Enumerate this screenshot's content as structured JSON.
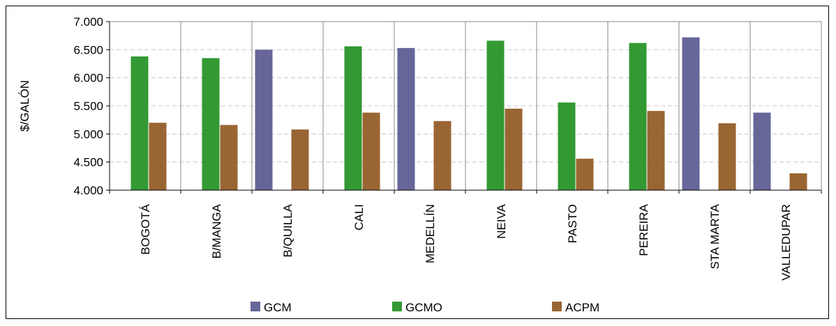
{
  "chart_data": {
    "type": "bar",
    "title": "",
    "xlabel": "",
    "ylabel": "$/GALÓN",
    "ylim": [
      4000,
      7000
    ],
    "yticks": [
      4000,
      4500,
      5000,
      5500,
      6000,
      6500,
      7000
    ],
    "ytick_labels": [
      "4.000",
      "4.500",
      "5.000",
      "5.500",
      "6.000",
      "6.500",
      "7.000"
    ],
    "grid": "horizontal dashed",
    "legend_position": "bottom",
    "categories": [
      "BOGOTÁ",
      "B/MANGA",
      "B/QUILLA",
      "CALI",
      "MEDELLÍN",
      "NEIVA",
      "PASTO",
      "PEREIRA",
      "STA MARTA",
      "VALLEDUPAR"
    ],
    "series": [
      {
        "name": "GCM",
        "color": "#666699",
        "values": [
          null,
          null,
          6500,
          null,
          6530,
          null,
          null,
          null,
          6720,
          5380
        ]
      },
      {
        "name": "GCMO",
        "color": "#339933",
        "values": [
          6380,
          6350,
          null,
          6560,
          null,
          6660,
          5560,
          6620,
          null,
          null
        ]
      },
      {
        "name": "ACPM",
        "color": "#996633",
        "values": [
          5200,
          5160,
          5080,
          5380,
          5230,
          5450,
          4560,
          5410,
          5190,
          4300
        ]
      }
    ]
  }
}
